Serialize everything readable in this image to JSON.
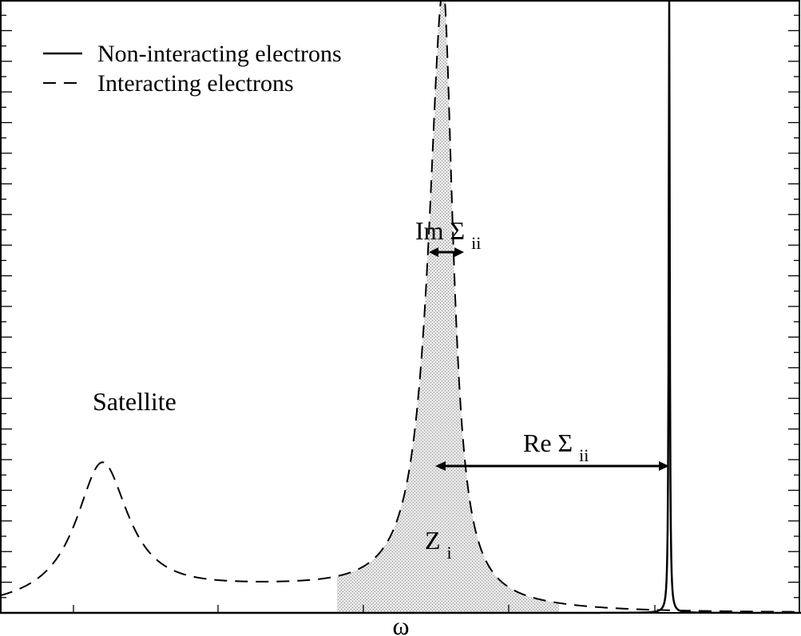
{
  "chart_data": {
    "type": "line",
    "title": "",
    "xlabel": "ω",
    "ylabel": "",
    "xlim": [
      0,
      1003
    ],
    "ylim": [
      0,
      1
    ],
    "grid": false,
    "legend_position": "top-left",
    "series": [
      {
        "name": "Non-interacting electrons",
        "style": "solid",
        "shape": "delta-peak",
        "x0": 838,
        "height": 1.0
      },
      {
        "name": "Interacting electrons",
        "style": "dashed",
        "shape": "quasiparticle-plus-satellite",
        "quasiparticle_center": 559,
        "quasiparticle_height": 1.0,
        "satellite_center": 128,
        "satellite_height": 0.225
      }
    ],
    "shaded_region": {
      "x_from": 422,
      "x_to": 700,
      "fill": "#d2d2d2"
    },
    "annotations": {
      "satellite": "Satellite",
      "im_sigma_main": "Im Σ",
      "im_sigma_sub": "ii",
      "re_sigma_main": "Re Σ",
      "re_sigma_sub": "ii",
      "z_main": "Z",
      "z_sub": "i"
    }
  }
}
